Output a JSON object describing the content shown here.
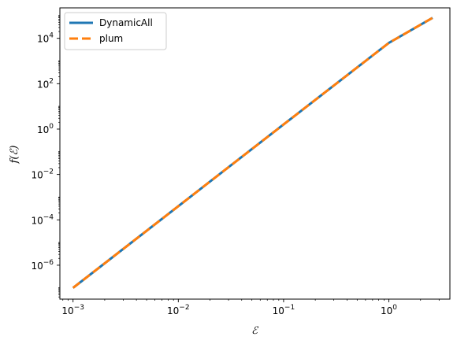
{
  "chart_data": {
    "type": "line",
    "xscale": "log",
    "yscale": "log",
    "xlabel": "ℰ",
    "ylabel": "f(ℰ)",
    "xlim": [
      0.00075,
      3.8
    ],
    "ylim": [
      3.2e-08,
      220000.0
    ],
    "grid": false,
    "legend_position": "top-left",
    "x_ticks": [
      {
        "value": 0.001,
        "base": "10",
        "exp": "−3"
      },
      {
        "value": 0.01,
        "base": "10",
        "exp": "−2"
      },
      {
        "value": 0.1,
        "base": "10",
        "exp": "−1"
      },
      {
        "value": 1,
        "base": "10",
        "exp": "0"
      }
    ],
    "y_ticks": [
      {
        "value": 1e-06,
        "base": "10",
        "exp": "−6"
      },
      {
        "value": 0.0001,
        "base": "10",
        "exp": "−4"
      },
      {
        "value": 0.01,
        "base": "10",
        "exp": "−2"
      },
      {
        "value": 1,
        "base": "10",
        "exp": "0"
      },
      {
        "value": 100,
        "base": "10",
        "exp": "2"
      },
      {
        "value": 10000,
        "base": "10",
        "exp": "4"
      }
    ],
    "series": [
      {
        "name": "DynamicAll",
        "color": "#1f77b4",
        "style": "solid",
        "x": [
          0.001,
          0.01,
          0.1,
          1,
          2.6
        ],
        "y": [
          1e-07,
          0.0004,
          1.6,
          6300.0,
          80000.0
        ]
      },
      {
        "name": "plum",
        "color": "#ff7f0e",
        "style": "dashed",
        "x": [
          0.001,
          0.01,
          0.1,
          1,
          2.6
        ],
        "y": [
          1e-07,
          0.0004,
          1.6,
          6300.0,
          80000.0
        ]
      }
    ]
  }
}
